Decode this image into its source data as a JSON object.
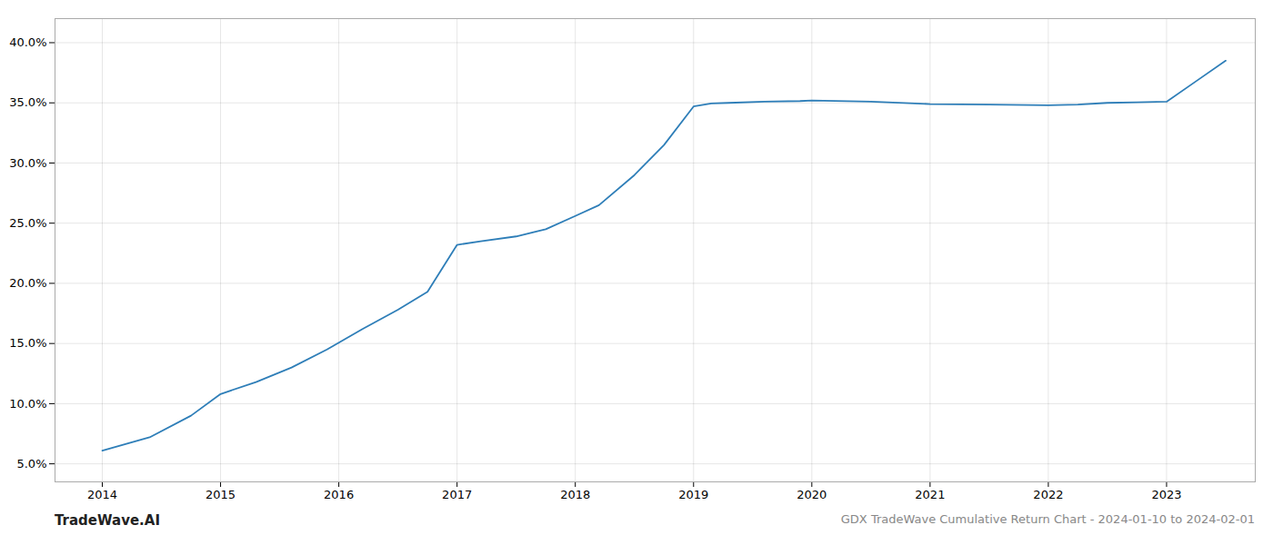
{
  "chart_data": {
    "type": "line",
    "title": "GDX TradeWave Cumulative Return Chart - 2024-01-10 to 2024-02-01",
    "annotations": [
      "TradeWave.AI"
    ],
    "x": [
      2014.0,
      2014.4,
      2014.75,
      2015.0,
      2015.3,
      2015.6,
      2015.9,
      2016.2,
      2016.5,
      2016.75,
      2017.0,
      2017.2,
      2017.5,
      2017.75,
      2018.0,
      2018.2,
      2018.5,
      2018.75,
      2019.0,
      2019.15,
      2019.3,
      2019.6,
      2019.9,
      2020.0,
      2020.5,
      2021.0,
      2021.5,
      2022.0,
      2022.25,
      2022.5,
      2022.75,
      2023.0,
      2023.25,
      2023.5
    ],
    "values": [
      6.1,
      7.2,
      9.0,
      10.8,
      11.8,
      13.0,
      14.5,
      16.2,
      17.8,
      19.3,
      23.2,
      23.5,
      23.9,
      24.5,
      25.6,
      26.5,
      29.0,
      31.5,
      34.7,
      34.95,
      35.0,
      35.1,
      35.15,
      35.2,
      35.1,
      34.9,
      34.85,
      34.8,
      34.85,
      35.0,
      35.05,
      35.1,
      36.8,
      38.5
    ],
    "color": "#2e7eb8",
    "xlim": [
      2013.6,
      2023.75
    ],
    "xticks": [
      2014,
      2015,
      2016,
      2017,
      2018,
      2019,
      2020,
      2021,
      2022,
      2023
    ],
    "ylim": [
      3.5,
      42.0
    ],
    "yticks": [
      {
        "value": 5.0,
        "label": "5.0%"
      },
      {
        "value": 10.0,
        "label": "10.0%"
      },
      {
        "value": 15.0,
        "label": "15.0%"
      },
      {
        "value": 20.0,
        "label": "20.0%"
      },
      {
        "value": 25.0,
        "label": "25.0%"
      },
      {
        "value": 30.0,
        "label": "30.0%"
      },
      {
        "value": 35.0,
        "label": "35.0%"
      },
      {
        "value": 40.0,
        "label": "40.0%"
      }
    ],
    "grid": true
  }
}
